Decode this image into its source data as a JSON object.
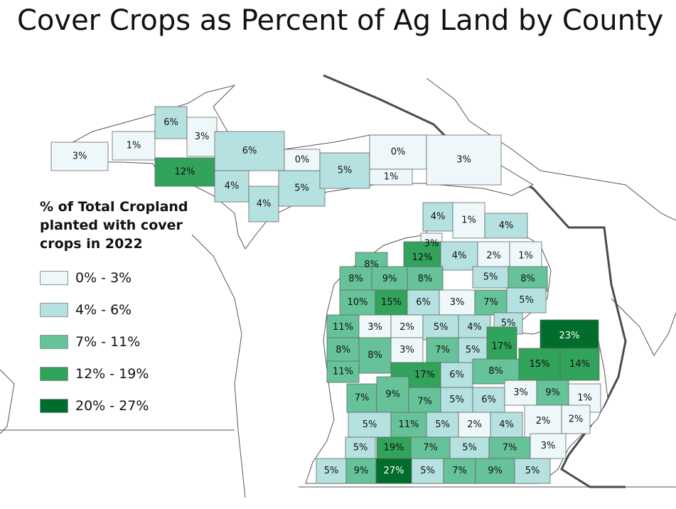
{
  "title": "Cover Crops as Percent of Ag Land by County",
  "legend": {
    "title": "% of Total Cropland planted with cover crops in 2022",
    "classes": [
      {
        "label": "0% - 3%",
        "color": "#eef8fa"
      },
      {
        "label": "4% - 6%",
        "color": "#b5e1e1"
      },
      {
        "label": "7% - 11%",
        "color": "#66c299"
      },
      {
        "label": "12% - 19%",
        "color": "#31a35a"
      },
      {
        "label": "20% - 27%",
        "color": "#006d2c"
      }
    ]
  },
  "colors": {
    "outline": "#333333",
    "county_border": "#555555",
    "state_line": "#4a4a4a",
    "land_bg": "#ffffff"
  },
  "counties": [
    {
      "value": "3%",
      "class": 0
    },
    {
      "value": "1%",
      "class": 0
    },
    {
      "value": "6%",
      "class": 1
    },
    {
      "value": "3%",
      "class": 0
    },
    {
      "value": "12%",
      "class": 3
    },
    {
      "value": "6%",
      "class": 1
    },
    {
      "value": "4%",
      "class": 1
    },
    {
      "value": "4%",
      "class": 1
    },
    {
      "value": "5%",
      "class": 1
    },
    {
      "value": "0%",
      "class": 0
    },
    {
      "value": "5%",
      "class": 1
    },
    {
      "value": "0%",
      "class": 0
    },
    {
      "value": "1%",
      "class": 0
    },
    {
      "value": "3%",
      "class": 0
    },
    {
      "value": "4%",
      "class": 1
    },
    {
      "value": "1%",
      "class": 0
    },
    {
      "value": "4%",
      "class": 1
    },
    {
      "value": "3%",
      "class": 0
    },
    {
      "value": "12%",
      "class": 3
    },
    {
      "value": "4%",
      "class": 1
    },
    {
      "value": "2%",
      "class": 0
    },
    {
      "value": "1%",
      "class": 0
    },
    {
      "value": "8%",
      "class": 2
    },
    {
      "value": "8%",
      "class": 2
    },
    {
      "value": "9%",
      "class": 2
    },
    {
      "value": "8%",
      "class": 2
    },
    {
      "value": "5%",
      "class": 1
    },
    {
      "value": "8%",
      "class": 2
    },
    {
      "value": "10%",
      "class": 2
    },
    {
      "value": "15%",
      "class": 3
    },
    {
      "value": "6%",
      "class": 1
    },
    {
      "value": "3%",
      "class": 0
    },
    {
      "value": "7%",
      "class": 2
    },
    {
      "value": "5%",
      "class": 1
    },
    {
      "value": "5%",
      "class": 1
    },
    {
      "value": "11%",
      "class": 2
    },
    {
      "value": "3%",
      "class": 0
    },
    {
      "value": "2%",
      "class": 0
    },
    {
      "value": "5%",
      "class": 1
    },
    {
      "value": "4%",
      "class": 1
    },
    {
      "value": "23%",
      "class": 4
    },
    {
      "value": "8%",
      "class": 2
    },
    {
      "value": "8%",
      "class": 2
    },
    {
      "value": "3%",
      "class": 0
    },
    {
      "value": "7%",
      "class": 2
    },
    {
      "value": "5%",
      "class": 1
    },
    {
      "value": "17%",
      "class": 3
    },
    {
      "value": "11%",
      "class": 2
    },
    {
      "value": "17%",
      "class": 3
    },
    {
      "value": "6%",
      "class": 1
    },
    {
      "value": "8%",
      "class": 2
    },
    {
      "value": "15%",
      "class": 3
    },
    {
      "value": "14%",
      "class": 3
    },
    {
      "value": "7%",
      "class": 2
    },
    {
      "value": "9%",
      "class": 2
    },
    {
      "value": "7%",
      "class": 2
    },
    {
      "value": "5%",
      "class": 1
    },
    {
      "value": "6%",
      "class": 1
    },
    {
      "value": "3%",
      "class": 0
    },
    {
      "value": "9%",
      "class": 2
    },
    {
      "value": "1%",
      "class": 0
    },
    {
      "value": "5%",
      "class": 1
    },
    {
      "value": "11%",
      "class": 2
    },
    {
      "value": "5%",
      "class": 1
    },
    {
      "value": "2%",
      "class": 0
    },
    {
      "value": "4%",
      "class": 1
    },
    {
      "value": "2%",
      "class": 0
    },
    {
      "value": "2%",
      "class": 0
    },
    {
      "value": "5%",
      "class": 1
    },
    {
      "value": "19%",
      "class": 3
    },
    {
      "value": "7%",
      "class": 2
    },
    {
      "value": "5%",
      "class": 1
    },
    {
      "value": "7%",
      "class": 2
    },
    {
      "value": "3%",
      "class": 0
    },
    {
      "value": "5%",
      "class": 1
    },
    {
      "value": "9%",
      "class": 2
    },
    {
      "value": "27%",
      "class": 4
    },
    {
      "value": "5%",
      "class": 1
    },
    {
      "value": "7%",
      "class": 2
    },
    {
      "value": "9%",
      "class": 2
    },
    {
      "value": "5%",
      "class": 1
    }
  ]
}
